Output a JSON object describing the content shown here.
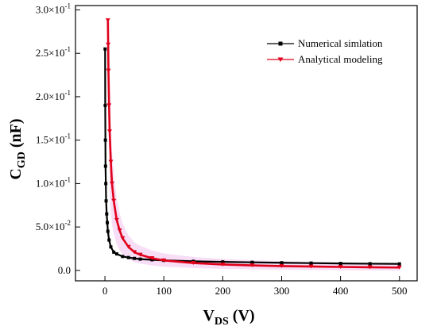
{
  "chart_data": {
    "type": "line",
    "title": "",
    "xlabel": {
      "main": "V",
      "sub": "DS",
      "unit": " (V)"
    },
    "ylabel": {
      "main": "C",
      "sub": "GD",
      "unit": " (nF)"
    },
    "xlim": [
      -50,
      530
    ],
    "ylim": [
      -0.012,
      0.305
    ],
    "x_ticks": [
      {
        "value": 0,
        "label": "0"
      },
      {
        "value": 100,
        "label": "100"
      },
      {
        "value": 200,
        "label": "200"
      },
      {
        "value": 300,
        "label": "300"
      },
      {
        "value": 400,
        "label": "400"
      },
      {
        "value": 500,
        "label": "500"
      }
    ],
    "y_ticks": [
      {
        "value": 0.0,
        "mant": "0.0",
        "exp": ""
      },
      {
        "value": 0.05,
        "mant": "5.0×10",
        "exp": "-2"
      },
      {
        "value": 0.1,
        "mant": "1.0×10",
        "exp": "-1"
      },
      {
        "value": 0.15,
        "mant": "1.5×10",
        "exp": "-1"
      },
      {
        "value": 0.2,
        "mant": "2.0×10",
        "exp": "-1"
      },
      {
        "value": 0.25,
        "mant": "2.5×10",
        "exp": "-1"
      },
      {
        "value": 0.3,
        "mant": "3.0×10",
        "exp": "-1"
      }
    ],
    "grid": false,
    "legend_position": "top-right",
    "series": [
      {
        "name": "Numerical simlation",
        "color": "#000000",
        "marker": "square",
        "x": [
          0.3,
          0.5,
          0.8,
          1,
          1.5,
          2,
          3,
          4,
          5,
          7,
          10,
          15,
          20,
          30,
          40,
          50,
          60,
          80,
          100,
          150,
          200,
          250,
          300,
          350,
          400,
          450,
          500
        ],
        "y": [
          0.255,
          0.19,
          0.15,
          0.12,
          0.1,
          0.08,
          0.065,
          0.055,
          0.045,
          0.035,
          0.027,
          0.021,
          0.019,
          0.016,
          0.0148,
          0.0138,
          0.013,
          0.0122,
          0.0115,
          0.0105,
          0.0098,
          0.0093,
          0.0088,
          0.0084,
          0.008,
          0.0077,
          0.0075
        ]
      },
      {
        "name": "Analytical modeling",
        "color": "#e0001b",
        "marker": "triangle-down",
        "x": [
          5,
          5.5,
          6,
          7,
          8,
          10,
          12,
          15,
          20,
          25,
          30,
          40,
          50,
          60,
          80,
          100,
          150,
          200,
          250,
          300,
          350,
          400,
          450,
          500
        ],
        "y": [
          0.288,
          0.26,
          0.23,
          0.19,
          0.16,
          0.125,
          0.1,
          0.08,
          0.058,
          0.046,
          0.037,
          0.027,
          0.021,
          0.018,
          0.014,
          0.0115,
          0.0085,
          0.0068,
          0.0058,
          0.005,
          0.0045,
          0.004,
          0.0036,
          0.0033
        ]
      }
    ]
  }
}
